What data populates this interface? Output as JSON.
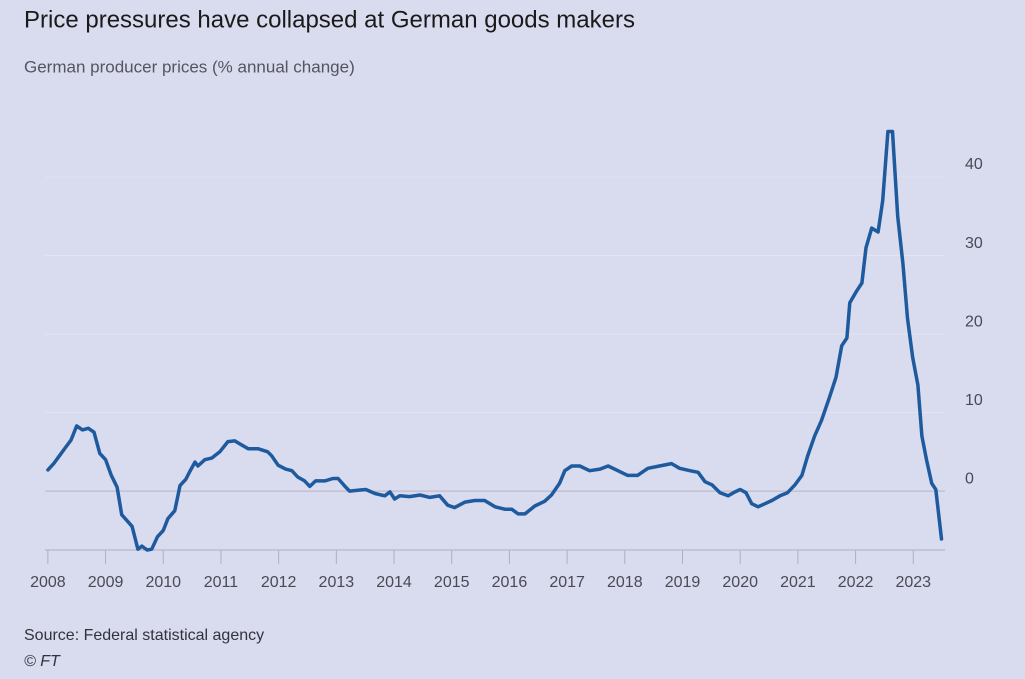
{
  "chart_data": {
    "type": "line",
    "title": "Price pressures have collapsed at German goods makers",
    "subtitle": "German producer prices (% annual change)",
    "source": "Source: Federal statistical agency",
    "credit": "© FT",
    "x": [
      2008.0,
      2008.1,
      2008.2,
      2008.3,
      2008.4,
      2008.5,
      2008.6,
      2008.7,
      2008.8,
      2008.9,
      2009.0,
      2009.1,
      2009.2,
      2009.28,
      2009.46,
      2009.56,
      2009.63,
      2009.72,
      2009.8,
      2009.9,
      2010.0,
      2010.08,
      2010.2,
      2010.29,
      2010.39,
      2010.46,
      2010.55,
      2010.6,
      2010.72,
      2010.84,
      2010.98,
      2011.12,
      2011.24,
      2011.33,
      2011.47,
      2011.64,
      2011.81,
      2011.88,
      2011.99,
      2012.12,
      2012.23,
      2012.33,
      2012.45,
      2012.54,
      2012.64,
      2012.8,
      2012.94,
      2013.03,
      2013.15,
      2013.23,
      2013.37,
      2013.51,
      2013.67,
      2013.84,
      2013.93,
      2014.01,
      2014.1,
      2014.27,
      2014.45,
      2014.62,
      2014.79,
      2014.93,
      2015.05,
      2015.23,
      2015.4,
      2015.57,
      2015.75,
      2015.92,
      2016.04,
      2016.15,
      2016.27,
      2016.44,
      2016.61,
      2016.73,
      2016.87,
      2016.96,
      2017.08,
      2017.22,
      2017.39,
      2017.57,
      2017.71,
      2017.88,
      2018.05,
      2018.22,
      2018.4,
      2018.6,
      2018.81,
      2018.95,
      2019.13,
      2019.27,
      2019.39,
      2019.51,
      2019.65,
      2019.79,
      2019.91,
      2020.0,
      2020.1,
      2020.2,
      2020.31,
      2020.43,
      2020.55,
      2020.69,
      2020.82,
      2020.95,
      2021.07,
      2021.17,
      2021.29,
      2021.41,
      2021.55,
      2021.66,
      2021.76,
      2021.85,
      2021.9,
      2022.02,
      2022.11,
      2022.18,
      2022.28,
      2022.39,
      2022.47,
      2022.56,
      2022.64,
      2022.73,
      2022.82,
      2022.9,
      2022.99,
      2023.08,
      2023.15,
      2023.23,
      2023.32,
      2023.39,
      2023.49
    ],
    "series": [
      {
        "name": "German producer prices",
        "color": "#1d5a9e",
        "values": [
          2.7,
          3.5,
          4.5,
          5.5,
          6.5,
          8.3,
          7.8,
          8.0,
          7.5,
          4.8,
          4.0,
          2.0,
          0.5,
          -3.0,
          -4.5,
          -7.4,
          -7.0,
          -7.5,
          -7.4,
          -5.8,
          -5.0,
          -3.5,
          -2.5,
          0.7,
          1.5,
          2.5,
          3.7,
          3.2,
          4.0,
          4.2,
          5.0,
          6.3,
          6.4,
          6.0,
          5.4,
          5.4,
          5.0,
          4.5,
          3.3,
          2.8,
          2.6,
          1.8,
          1.3,
          0.6,
          1.3,
          1.3,
          1.6,
          1.6,
          0.6,
          0.0,
          0.1,
          0.2,
          -0.3,
          -0.6,
          -0.1,
          -1.0,
          -0.6,
          -0.7,
          -0.5,
          -0.8,
          -0.6,
          -1.8,
          -2.1,
          -1.4,
          -1.2,
          -1.2,
          -2.0,
          -2.3,
          -2.3,
          -2.9,
          -2.9,
          -1.9,
          -1.3,
          -0.5,
          1.0,
          2.6,
          3.2,
          3.2,
          2.6,
          2.8,
          3.2,
          2.6,
          2.0,
          2.0,
          2.9,
          3.2,
          3.5,
          2.9,
          2.6,
          2.4,
          1.2,
          0.8,
          -0.2,
          -0.6,
          -0.1,
          0.2,
          -0.2,
          -1.6,
          -2.0,
          -1.6,
          -1.2,
          -0.6,
          -0.2,
          0.8,
          2.0,
          4.5,
          7.0,
          9.0,
          12.0,
          14.5,
          18.5,
          19.5,
          24.0,
          25.5,
          26.5,
          31.0,
          33.5,
          33.0,
          37.0,
          45.8,
          45.8,
          35.0,
          29.0,
          22.0,
          17.0,
          13.5,
          7.0,
          4.0,
          1.0,
          0.2,
          -6.1
        ]
      }
    ],
    "xlim": [
      2007.95,
      2023.55
    ],
    "xticks": [
      2008,
      2009,
      2010,
      2011,
      2012,
      2013,
      2014,
      2015,
      2016,
      2017,
      2018,
      2019,
      2020,
      2021,
      2022,
      2023
    ],
    "ylim": [
      -7.5,
      50
    ],
    "yticks": [
      0,
      10,
      20,
      30,
      40
    ],
    "grid": true
  }
}
